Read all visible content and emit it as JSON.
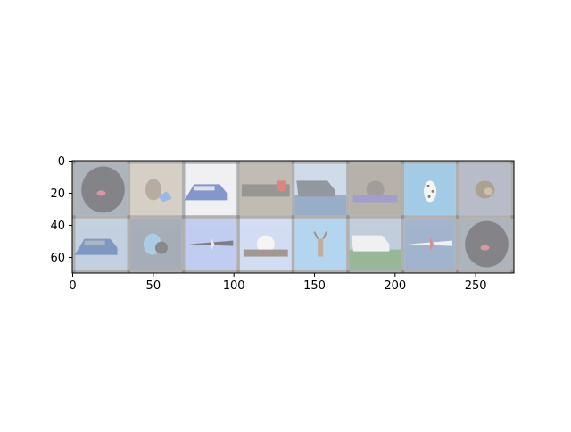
{
  "chart_data": {
    "type": "image-grid",
    "xlim": [
      0,
      274
    ],
    "ylim": [
      70,
      0
    ],
    "x_ticks": [
      0,
      50,
      100,
      150,
      200,
      250
    ],
    "y_ticks": [
      0,
      20,
      40,
      60
    ],
    "grid": false,
    "grid_rows": 2,
    "grid_cols": 8,
    "frame_color": "#808080",
    "tiles": [
      {
        "subject": "dog-face",
        "background": "#7e8794",
        "main": "#3a3a40",
        "accent": "#c4566a"
      },
      {
        "subject": "frog",
        "background": "#bcb3a4",
        "main": "#8c7a66",
        "accent": "#5c8fd8"
      },
      {
        "subject": "car",
        "background": "#e8e8ec",
        "main": "#3858b0",
        "accent": "#c9d0dc"
      },
      {
        "subject": "truck",
        "background": "#9a9486",
        "main": "#5a5650",
        "accent": "#c83a3a"
      },
      {
        "subject": "ship",
        "background": "#b4c6dc",
        "main": "#505a66",
        "accent": "#5a7ea8"
      },
      {
        "subject": "cat",
        "background": "#8a8276",
        "main": "#6a625a",
        "accent": "#6a62b4"
      },
      {
        "subject": "dalmatian",
        "background": "#6cacd8",
        "main": "#f0f0f0",
        "accent": "#303030"
      },
      {
        "subject": "dog",
        "background": "#8c94a8",
        "main": "#7a6a52",
        "accent": "#b09a7c"
      },
      {
        "subject": "car",
        "background": "#a0b4cc",
        "main": "#3058a0",
        "accent": "#7a8a9a"
      },
      {
        "subject": "bird",
        "background": "#727c8a",
        "main": "#7aaed8",
        "accent": "#404048"
      },
      {
        "subject": "airplane",
        "background": "#9cb0e8",
        "main": "#30323a",
        "accent": "#d8dcec"
      },
      {
        "subject": "cat",
        "background": "#b8c8ec",
        "main": "#f2f0ee",
        "accent": "#6a5a50"
      },
      {
        "subject": "deer",
        "background": "#86bce8",
        "main": "#a07e5e",
        "accent": "#6a5040"
      },
      {
        "subject": "ship",
        "background": "#9cb0c6",
        "main": "#e8e8e8",
        "accent": "#5a8a5a"
      },
      {
        "subject": "airplane",
        "background": "#6a86b0",
        "main": "#e6e8ee",
        "accent": "#c04848"
      },
      {
        "subject": "dog-face",
        "background": "#7e8794",
        "main": "#3a3a40",
        "accent": "#c4566a"
      }
    ]
  }
}
